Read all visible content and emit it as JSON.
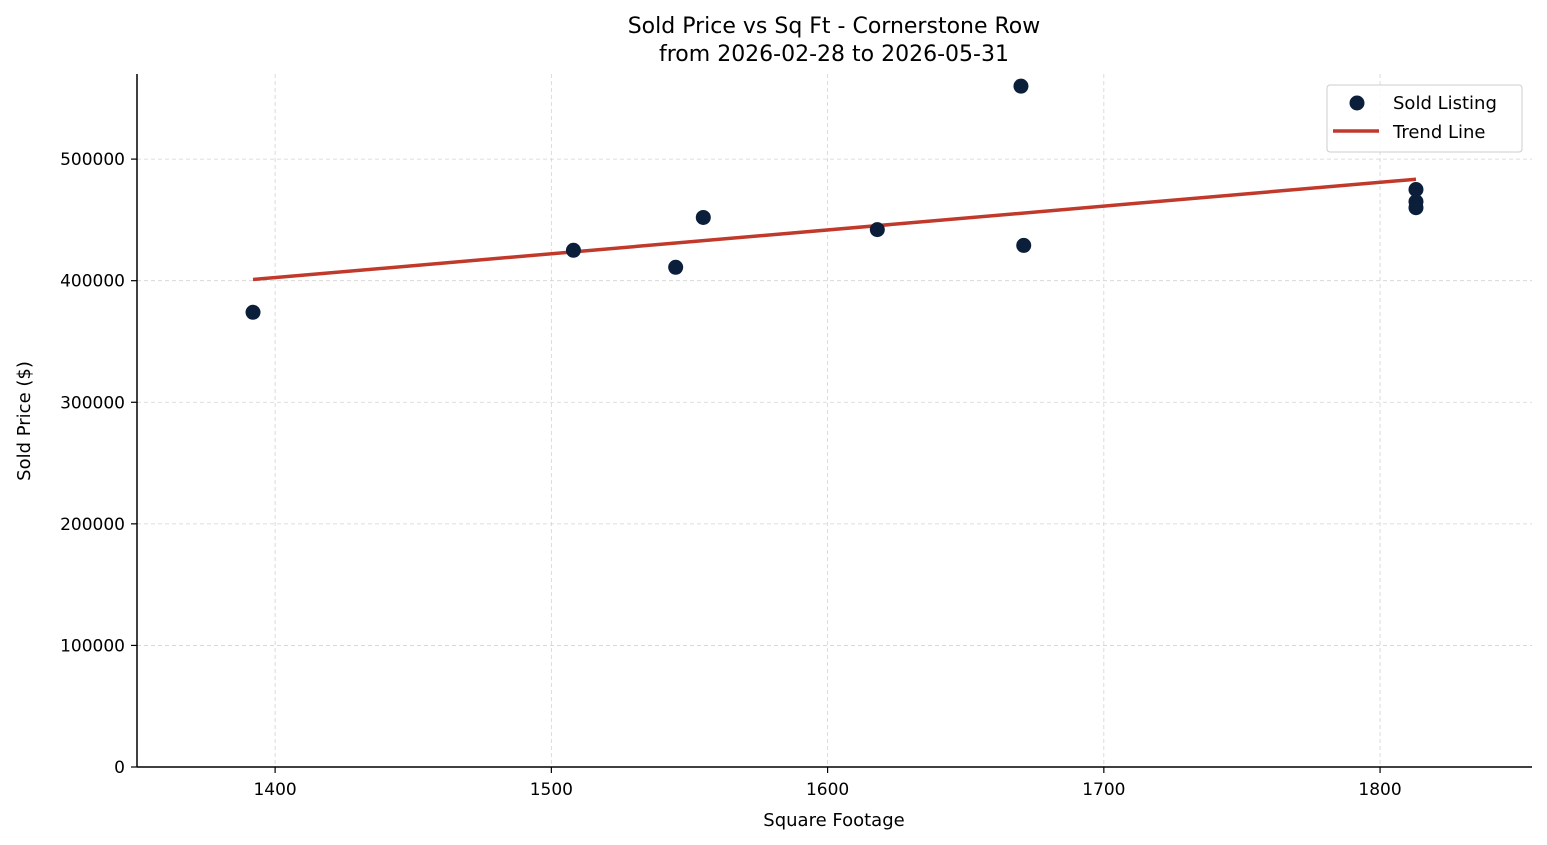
{
  "chart_data": {
    "type": "scatter",
    "title": "Sold Price vs Sq Ft - Cornerstone Row",
    "subtitle": "from 2026-02-28 to 2026-05-31",
    "xlabel": "Square Footage",
    "ylabel": "Sold Price ($)",
    "xlim": [
      1350,
      1855
    ],
    "ylim": [
      0,
      570000
    ],
    "xticks": [
      1400,
      1500,
      1600,
      1700,
      1800
    ],
    "yticks": [
      0,
      100000,
      200000,
      300000,
      400000,
      500000
    ],
    "grid": true,
    "legend_position": "top-right",
    "series": [
      {
        "name": "Sold Listing",
        "kind": "scatter",
        "color": "#0b1f3a",
        "points": [
          {
            "x": 1392,
            "y": 374000
          },
          {
            "x": 1508,
            "y": 425000
          },
          {
            "x": 1545,
            "y": 411000
          },
          {
            "x": 1555,
            "y": 452000
          },
          {
            "x": 1618,
            "y": 442000
          },
          {
            "x": 1670,
            "y": 560000
          },
          {
            "x": 1671,
            "y": 429000
          },
          {
            "x": 1813,
            "y": 475000
          },
          {
            "x": 1813,
            "y": 465000
          },
          {
            "x": 1813,
            "y": 460000
          }
        ]
      },
      {
        "name": "Trend Line",
        "kind": "line",
        "color": "#c0392b",
        "points": [
          {
            "x": 1392,
            "y": 401000
          },
          {
            "x": 1813,
            "y": 483500
          }
        ]
      }
    ]
  }
}
